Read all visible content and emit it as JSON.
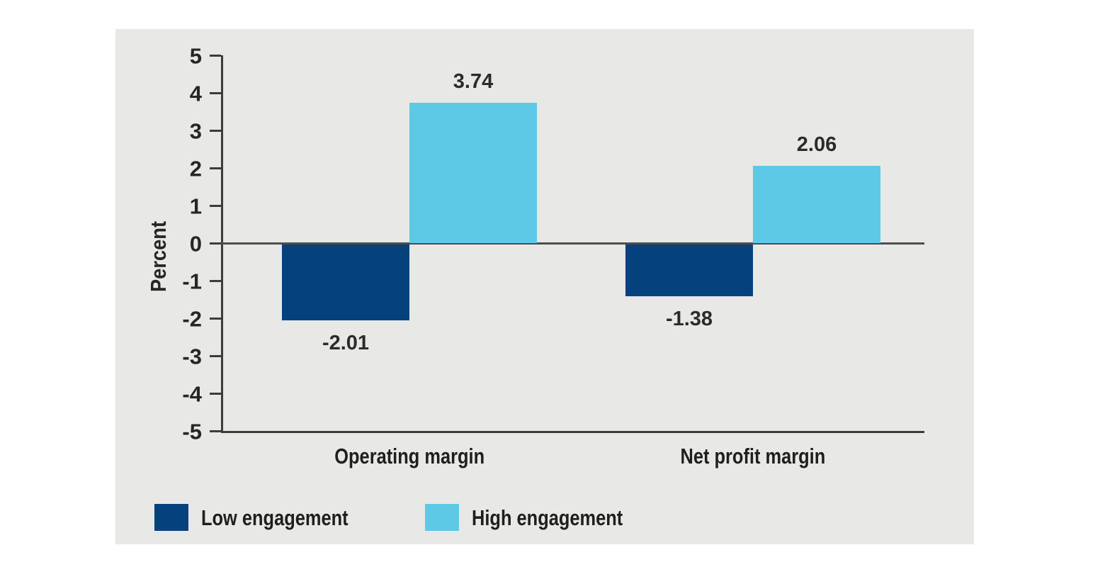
{
  "chart_data": {
    "type": "bar",
    "categories": [
      "Operating margin",
      "Net profit margin"
    ],
    "series": [
      {
        "name": "Low engagement",
        "color": "#04417d",
        "values": [
          -2.01,
          -1.38
        ]
      },
      {
        "name": "High engagement",
        "color": "#5ec9e6",
        "values": [
          3.74,
          2.06
        ]
      }
    ],
    "title": "",
    "xlabel": "",
    "ylabel": "Percent",
    "ylim": [
      -5,
      5
    ],
    "yticks": [
      5,
      4,
      3,
      2,
      1,
      0,
      -1,
      -2,
      -3,
      -4,
      -5
    ],
    "grid": false,
    "legend_position": "bottom-left",
    "value_labels": [
      "-2.01",
      "3.74",
      "-1.38",
      "2.06"
    ],
    "panel_background": "#e8e8e6",
    "axis_color": "#3c3c3c"
  }
}
